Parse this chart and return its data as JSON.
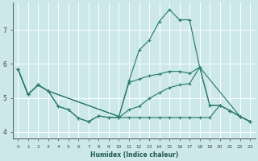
{
  "background_color": "#cce8eb",
  "grid_color": "#ffffff",
  "line_color": "#2e7b6e",
  "xlabel": "Humidex (Indice chaleur)",
  "xlim": [
    -0.5,
    23.5
  ],
  "ylim": [
    3.8,
    7.8
  ],
  "yticks": [
    4,
    5,
    6,
    7
  ],
  "xticks": [
    0,
    1,
    2,
    3,
    4,
    5,
    6,
    7,
    8,
    9,
    10,
    11,
    12,
    13,
    14,
    15,
    16,
    17,
    18,
    19,
    20,
    21,
    22,
    23
  ],
  "series": [
    {
      "x": [
        0,
        1,
        2,
        3,
        10,
        11,
        12,
        13,
        14,
        15,
        16,
        17,
        18,
        22,
        23
      ],
      "y": [
        5.85,
        5.1,
        5.38,
        5.2,
        4.45,
        5.5,
        6.4,
        6.7,
        7.25,
        7.6,
        7.3,
        7.3,
        5.9,
        4.45,
        4.3
      ]
    },
    {
      "x": [
        0,
        1,
        2,
        3,
        10,
        11,
        12,
        13,
        14,
        15,
        16,
        17,
        18,
        19,
        20,
        21,
        22,
        23
      ],
      "y": [
        5.85,
        5.1,
        5.38,
        5.2,
        4.45,
        5.45,
        5.55,
        5.65,
        5.7,
        5.78,
        5.78,
        5.72,
        5.9,
        4.78,
        4.78,
        4.62,
        4.45,
        4.3
      ]
    },
    {
      "x": [
        0,
        1,
        2,
        3,
        4,
        5,
        6,
        7,
        8,
        9,
        10,
        11,
        12,
        13,
        14,
        15,
        16,
        17,
        18,
        19,
        20,
        21,
        22,
        23
      ],
      "y": [
        5.85,
        5.1,
        5.38,
        5.2,
        4.75,
        4.65,
        4.4,
        4.3,
        4.47,
        4.42,
        4.42,
        4.65,
        4.75,
        4.98,
        5.15,
        5.3,
        5.38,
        5.42,
        5.9,
        4.78,
        4.78,
        4.62,
        4.45,
        4.3
      ]
    },
    {
      "x": [
        0,
        1,
        2,
        3,
        4,
        5,
        6,
        7,
        8,
        9,
        10,
        11,
        12,
        13,
        14,
        15,
        16,
        17,
        18,
        19,
        20,
        21,
        22,
        23
      ],
      "y": [
        5.85,
        5.1,
        5.38,
        5.2,
        4.75,
        4.65,
        4.4,
        4.3,
        4.47,
        4.42,
        4.42,
        4.42,
        4.42,
        4.42,
        4.42,
        4.42,
        4.42,
        4.42,
        4.42,
        4.42,
        4.78,
        4.62,
        4.45,
        4.3
      ]
    }
  ]
}
